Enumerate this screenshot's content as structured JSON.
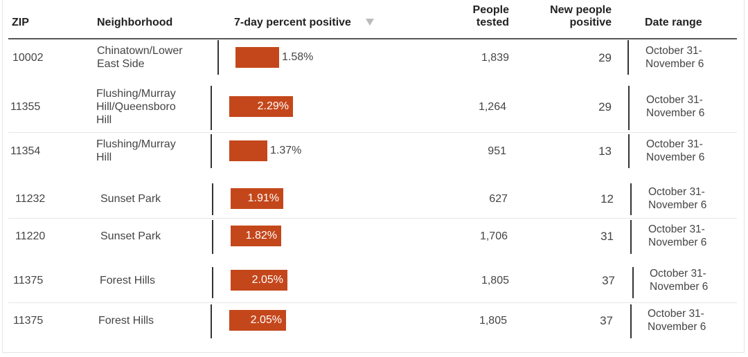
{
  "headers": {
    "zip": "ZIP",
    "neighborhood": "Neighborhood",
    "percent": "7-day percent positive",
    "tested_line1": "People",
    "tested_line2": "tested",
    "positive_line1": "New people",
    "positive_line2": "positive",
    "date": "Date range"
  },
  "sort_icon": "sort-down-triangle-icon",
  "bar_color": "#c4471b",
  "rows": [
    {
      "zip": "10002",
      "neighborhood": [
        "Chinatown/Lower",
        "East Side"
      ],
      "percent": 1.58,
      "percent_label": "1.58%",
      "tested": "1,839",
      "positive": "29",
      "date": [
        "October 31-",
        "November 6"
      ]
    },
    {
      "zip": "11355",
      "neighborhood": [
        "Flushing/Murray",
        "Hill/Queensboro",
        "Hill"
      ],
      "percent": 2.29,
      "percent_label": "2.29%",
      "tested": "1,264",
      "positive": "29",
      "date": [
        "October 31-",
        "November 6"
      ]
    },
    {
      "zip": "11354",
      "neighborhood": [
        "Flushing/Murray",
        "Hill"
      ],
      "percent": 1.37,
      "percent_label": "1.37%",
      "tested": "951",
      "positive": "13",
      "date": [
        "October 31-",
        "November 6"
      ]
    },
    {
      "zip": "11232",
      "neighborhood": [
        "Sunset Park"
      ],
      "percent": 1.91,
      "percent_label": "1.91%",
      "tested": "627",
      "positive": "12",
      "date": [
        "October 31-",
        "November 6"
      ]
    },
    {
      "zip": "11220",
      "neighborhood": [
        "Sunset Park"
      ],
      "percent": 1.82,
      "percent_label": "1.82%",
      "tested": "1,706",
      "positive": "31",
      "date": [
        "October 31-",
        "November 6"
      ]
    },
    {
      "zip": "11375",
      "neighborhood": [
        "Forest Hills"
      ],
      "percent": 2.05,
      "percent_label": "2.05%",
      "tested": "1,805",
      "positive": "37",
      "date": [
        "October 31-",
        "November 6"
      ]
    },
    {
      "zip": "11375",
      "neighborhood": [
        "Forest Hills"
      ],
      "percent": 2.05,
      "percent_label": "2.05%",
      "tested": "1,805",
      "positive": "37",
      "date": [
        "October 31-",
        "November 6"
      ]
    }
  ]
}
